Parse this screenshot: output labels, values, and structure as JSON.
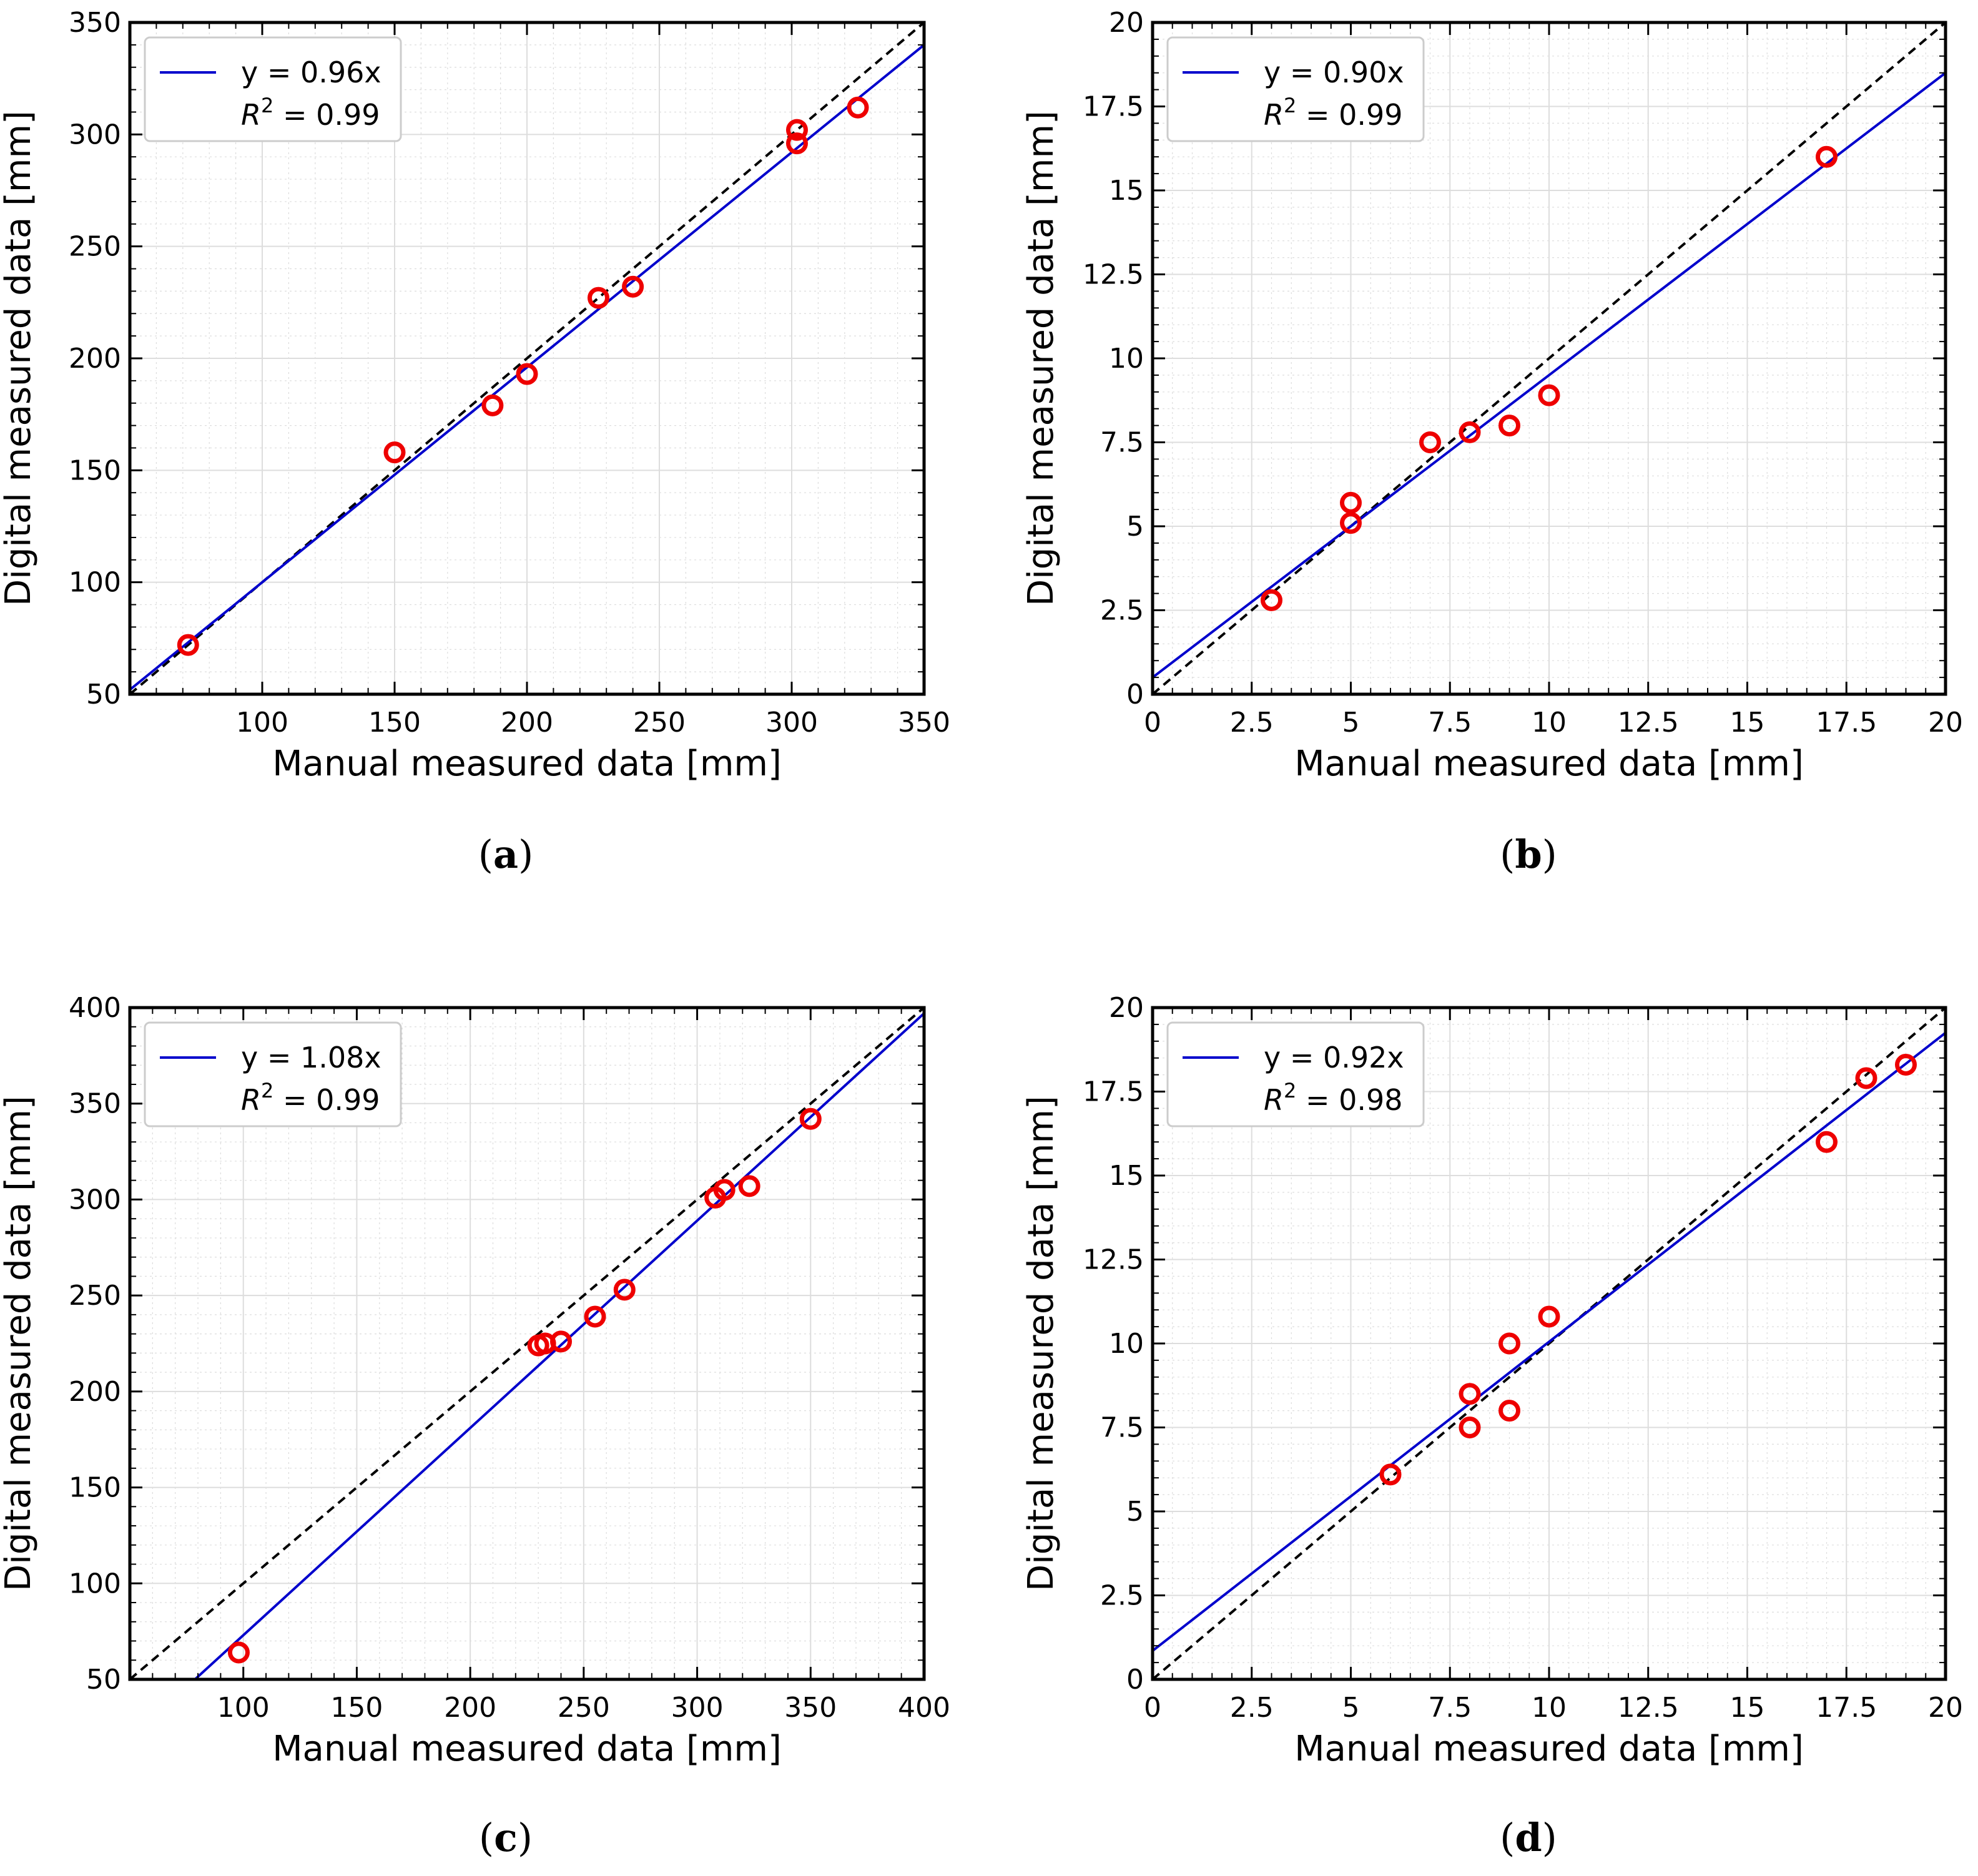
{
  "figure": {
    "captions": [
      {
        "open": "(",
        "letter": "a",
        "close": ")"
      },
      {
        "open": "(",
        "letter": "b",
        "close": ")"
      },
      {
        "open": "(",
        "letter": "c",
        "close": ")"
      },
      {
        "open": "(",
        "letter": "d",
        "close": ")"
      }
    ]
  },
  "colors": {
    "fit_line": "#0000cc",
    "identity_line": "#000000",
    "points": "#ee0000",
    "grid": "#dddddd",
    "axes": "#000000"
  },
  "chart_data": [
    {
      "type": "scatter",
      "panel": "a",
      "title": "",
      "xlabel": "Manual measured data [mm]",
      "ylabel": "Digital measured data [mm]",
      "xlim": [
        50,
        350
      ],
      "ylim": [
        50,
        350
      ],
      "xticks": [
        100,
        150,
        200,
        250,
        300,
        350
      ],
      "yticks": [
        50,
        100,
        150,
        200,
        250,
        300,
        350
      ],
      "xtick_labels": [
        "100",
        "150",
        "200",
        "250",
        "300",
        "350"
      ],
      "ytick_labels": [
        "50",
        "100",
        "150",
        "200",
        "250",
        "300",
        "350"
      ],
      "grid": true,
      "legend": {
        "position": "top-left",
        "fit_label": "y = 0.96x",
        "r2_label": "R",
        "r2_sup": "2",
        "r2_value": " = 0.99"
      },
      "fit": {
        "slope": 0.96,
        "intercept": 4,
        "r2": 0.99
      },
      "identity_line": true,
      "points": [
        [
          72,
          72
        ],
        [
          150,
          158
        ],
        [
          187,
          179
        ],
        [
          200,
          193
        ],
        [
          227,
          227
        ],
        [
          240,
          232
        ],
        [
          302,
          302
        ],
        [
          302,
          296
        ],
        [
          325,
          312
        ]
      ]
    },
    {
      "type": "scatter",
      "panel": "b",
      "title": "",
      "xlabel": "Manual measured data [mm]",
      "ylabel": "Digital measured data [mm]",
      "xlim": [
        0,
        20
      ],
      "ylim": [
        0,
        20
      ],
      "xticks": [
        0,
        2.5,
        5,
        7.5,
        10,
        12.5,
        15,
        17.5,
        20
      ],
      "yticks": [
        0,
        2.5,
        5,
        7.5,
        10,
        12.5,
        15,
        17.5,
        20
      ],
      "xtick_labels": [
        "0",
        "2.5",
        "5",
        "7.5",
        "10",
        "12.5",
        "15",
        "17.5",
        "20"
      ],
      "ytick_labels": [
        "0",
        "2.5",
        "5",
        "7.5",
        "10",
        "12.5",
        "15",
        "17.5",
        "20"
      ],
      "grid": true,
      "legend": {
        "position": "top-left",
        "fit_label": "y = 0.90x",
        "r2_label": "R",
        "r2_sup": "2",
        "r2_value": " = 0.99"
      },
      "fit": {
        "slope": 0.9,
        "intercept": 0.5,
        "r2": 0.99
      },
      "identity_line": true,
      "points": [
        [
          3,
          2.8
        ],
        [
          5,
          5.7
        ],
        [
          5,
          5.1
        ],
        [
          7,
          7.5
        ],
        [
          8,
          7.8
        ],
        [
          9,
          8.0
        ],
        [
          10,
          8.9
        ],
        [
          17,
          16.0
        ]
      ]
    },
    {
      "type": "scatter",
      "panel": "c",
      "title": "",
      "xlabel": "Manual measured data [mm]",
      "ylabel": "Digital measured data [mm]",
      "xlim": [
        50,
        400
      ],
      "ylim": [
        50,
        400
      ],
      "xticks": [
        100,
        150,
        200,
        250,
        300,
        350,
        400
      ],
      "yticks": [
        50,
        100,
        150,
        200,
        250,
        300,
        350,
        400
      ],
      "xtick_labels": [
        "100",
        "150",
        "200",
        "250",
        "300",
        "350",
        "400"
      ],
      "ytick_labels": [
        "50",
        "100",
        "150",
        "200",
        "250",
        "300",
        "350",
        "400"
      ],
      "grid": true,
      "legend": {
        "position": "top-left",
        "fit_label": "y = 1.08x",
        "r2_label": "R",
        "r2_sup": "2",
        "r2_value": " = 0.99"
      },
      "fit": {
        "slope": 1.08,
        "intercept": -35,
        "r2": 0.99
      },
      "identity_line": true,
      "points": [
        [
          98,
          64
        ],
        [
          230,
          224
        ],
        [
          233,
          225
        ],
        [
          240,
          226
        ],
        [
          255,
          239
        ],
        [
          268,
          253
        ],
        [
          308,
          301
        ],
        [
          312,
          305
        ],
        [
          323,
          307
        ],
        [
          350,
          342
        ]
      ]
    },
    {
      "type": "scatter",
      "panel": "d",
      "title": "",
      "xlabel": "Manual measured data [mm]",
      "ylabel": "Digital measured data [mm]",
      "xlim": [
        0,
        20
      ],
      "ylim": [
        0,
        20
      ],
      "xticks": [
        0,
        2.5,
        5,
        7.5,
        10,
        12.5,
        15,
        17.5,
        20
      ],
      "yticks": [
        0,
        2.5,
        5,
        7.5,
        10,
        12.5,
        15,
        17.5,
        20
      ],
      "xtick_labels": [
        "0",
        "2.5",
        "5",
        "7.5",
        "10",
        "12.5",
        "15",
        "17.5",
        "20"
      ],
      "ytick_labels": [
        "0",
        "2.5",
        "5",
        "7.5",
        "10",
        "12.5",
        "15",
        "17.5",
        "20"
      ],
      "grid": true,
      "legend": {
        "position": "top-left",
        "fit_label": "y = 0.92x",
        "r2_label": "R",
        "r2_sup": "2",
        "r2_value": " = 0.98"
      },
      "fit": {
        "slope": 0.92,
        "intercept": 0.85,
        "r2": 0.98
      },
      "identity_line": true,
      "points": [
        [
          6,
          6.1
        ],
        [
          8,
          8.5
        ],
        [
          8,
          7.5
        ],
        [
          9,
          10.0
        ],
        [
          9,
          8.0
        ],
        [
          10,
          10.8
        ],
        [
          17,
          16.0
        ],
        [
          18,
          17.9
        ],
        [
          19,
          18.3
        ]
      ]
    }
  ]
}
